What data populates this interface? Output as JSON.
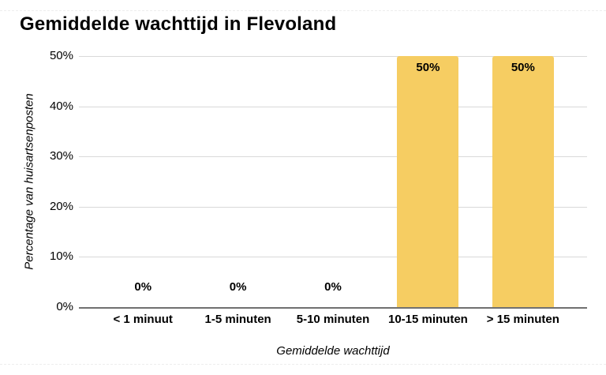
{
  "chart_data": {
    "type": "bar",
    "title": "Gemiddelde wachttijd in Flevoland",
    "xlabel": "Gemiddelde wachttijd",
    "ylabel": "Percentage van huisartsenposten",
    "categories": [
      "< 1 minuut",
      "1-5 minuten",
      "5-10 minuten",
      "10-15 minuten",
      "> 15 minuten"
    ],
    "values": [
      0,
      0,
      0,
      50,
      50
    ],
    "data_labels": [
      "0%",
      "0%",
      "0%",
      "50%",
      "50%"
    ],
    "ytick_values": [
      0,
      10,
      20,
      30,
      40,
      50
    ],
    "ytick_labels": [
      "0%",
      "10%",
      "20%",
      "30%",
      "40%",
      "50%"
    ],
    "ylim": [
      0,
      50
    ],
    "grid": "horizontal",
    "legend": "none",
    "bar_color": "#F6CD62"
  },
  "colors": {
    "bar": "#F6CD62",
    "gridline": "#D9D9D9",
    "axis_line": "#707070",
    "text": "#000000",
    "background": "#FFFFFF"
  }
}
